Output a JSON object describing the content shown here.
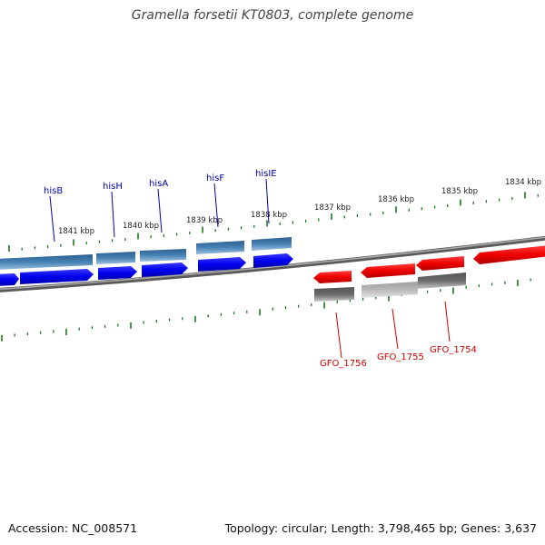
{
  "title": "Gramella forsetii KT0803, complete genome",
  "footer": {
    "accession": "Accession: NC_008571",
    "summary": "Topology: circular; Length: 3,798,465 bp; Genes: 3,637"
  },
  "colors": {
    "plus_cds": "#0000ee",
    "plus_gene": "#4682b4",
    "minus_cds": "#ee0000",
    "minus_gene_dark": "#666666",
    "minus_gene_light": "#b5b5b5",
    "backbone": "#808080",
    "tick": "#1a7a1a",
    "label_plus": "#0000aa",
    "label_minus": "#cc0000"
  },
  "scale_labels": [
    "1841 kbp",
    "1840 kbp",
    "1839 kbp",
    "1838 kbp",
    "1837 kbp",
    "1836 kbp",
    "1835 kbp",
    "1834 kbp"
  ],
  "genes_plus": [
    "hisB",
    "hisH",
    "hisA",
    "hisF",
    "hisIE"
  ],
  "genes_minus": [
    "GFO_1756",
    "GFO_1755",
    "GFO_1754"
  ]
}
